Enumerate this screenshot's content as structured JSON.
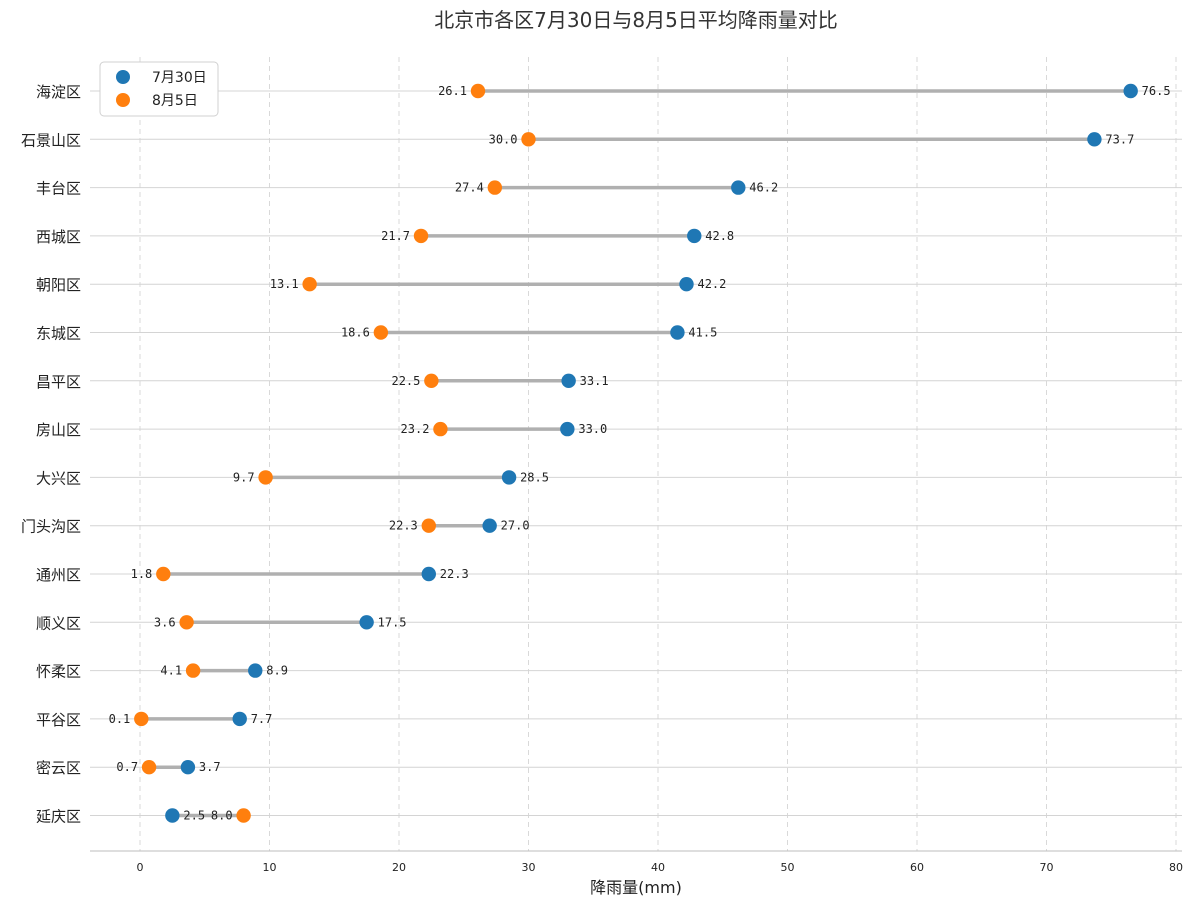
{
  "chart_data": {
    "type": "dumbbell",
    "title": "北京市各区7月30日与8月5日平均降雨量对比",
    "xlabel": "降雨量(mm)",
    "ylabel": "",
    "xlim": [
      -4,
      80.5
    ],
    "xticks": [
      0,
      10,
      20,
      30,
      40,
      50,
      60,
      70,
      80
    ],
    "grid": {
      "x": "dashed",
      "y": "solid"
    },
    "legend_position": "top-left",
    "categories": [
      "海淀区",
      "石景山区",
      "丰台区",
      "西城区",
      "朝阳区",
      "东城区",
      "昌平区",
      "房山区",
      "大兴区",
      "门头沟区",
      "通州区",
      "顺义区",
      "怀柔区",
      "平谷区",
      "密云区",
      "延庆区"
    ],
    "series": [
      {
        "name": "7月30日",
        "color": "#1f77b4",
        "values": [
          76.5,
          73.7,
          46.2,
          42.8,
          42.2,
          41.5,
          33.1,
          33.0,
          28.5,
          27.0,
          22.3,
          17.5,
          8.9,
          7.7,
          3.7,
          2.5
        ]
      },
      {
        "name": "8月5日",
        "color": "#ff7f0e",
        "values": [
          26.1,
          30.0,
          27.4,
          21.7,
          13.1,
          18.6,
          22.5,
          23.2,
          9.7,
          22.3,
          1.8,
          3.6,
          4.1,
          0.1,
          0.7,
          8.0
        ]
      }
    ],
    "connector_color": "#b0b0b0"
  }
}
